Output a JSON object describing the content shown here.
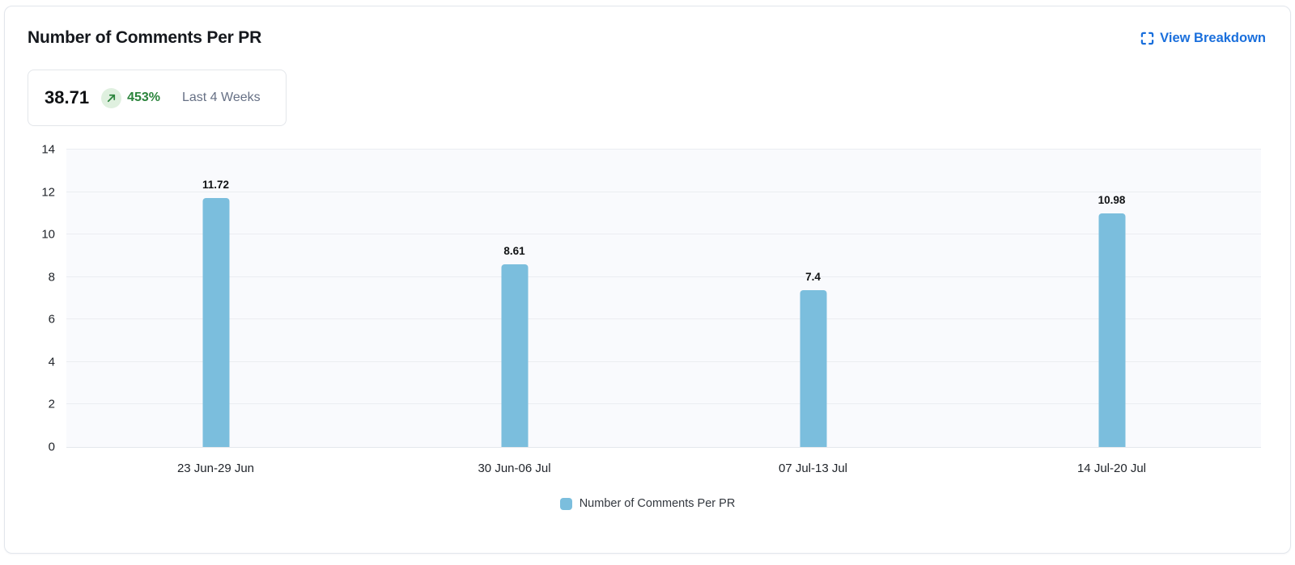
{
  "header": {
    "title": "Number of Comments Per PR",
    "breakdown_label": "View Breakdown"
  },
  "summary": {
    "value": "38.71",
    "trend": "up",
    "change": "453%",
    "period": "Last 4 Weeks"
  },
  "chart_data": {
    "type": "bar",
    "title": "Number of Comments Per PR",
    "categories": [
      "23 Jun-29 Jun",
      "30 Jun-06 Jul",
      "07 Jul-13 Jul",
      "14 Jul-20 Jul"
    ],
    "values": [
      11.72,
      8.61,
      7.4,
      10.98
    ],
    "value_labels": [
      "11.72",
      "8.61",
      "7.4",
      "10.98"
    ],
    "xlabel": "",
    "ylabel": "",
    "ylim": [
      0,
      14
    ],
    "yticks": [
      0,
      2,
      4,
      6,
      8,
      10,
      12,
      14
    ],
    "grid": true,
    "legend": "Number of Comments Per PR",
    "legend_position": "bottom",
    "bar_color": "#7bbedd"
  },
  "colors": {
    "accent_blue": "#1a6fdc",
    "success_green": "#2b843c",
    "success_green_bg": "#dff0df",
    "bar_blue": "#7bbedd",
    "plot_background": "#f9fafd",
    "gridline": "#ebedf1"
  }
}
